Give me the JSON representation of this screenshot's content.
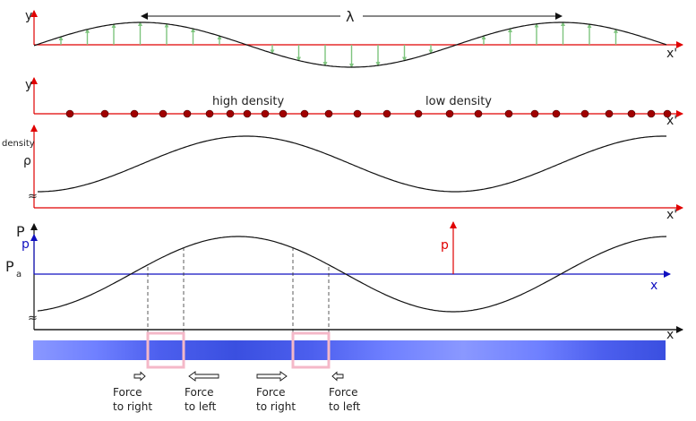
{
  "panel1": {
    "y_label": "y",
    "x_label": "x'",
    "wavelength_symbol": "λ"
  },
  "panel2": {
    "y_label": "y",
    "x_label": "x'",
    "high_density_label": "high density",
    "low_density_label": "low density"
  },
  "panel3": {
    "y_label_top": "density",
    "y_label_symbol": "ρ",
    "break_mark": "≈",
    "x_label": "x'"
  },
  "panel4": {
    "y_label_P": "P",
    "y_label_p": "p",
    "Pa_label": "P",
    "Pa_subscript": "a",
    "p_marker_label": "p",
    "x_label": "x",
    "break_mark": "≈"
  },
  "bar_panel": {
    "x_label": "x"
  },
  "forces": [
    {
      "line1": "Force",
      "line2": "to right"
    },
    {
      "line1": "Force",
      "line2": "to left"
    },
    {
      "line1": "Force",
      "line2": "to right"
    },
    {
      "line1": "Force",
      "line2": "to left"
    }
  ],
  "colors": {
    "axis_red": "#e00000",
    "axis_blue": "#1010c0",
    "curve": "#111111",
    "arrow_green": "#7ec47e",
    "dot": "#a00000",
    "bar_dark": "#3a4fe0",
    "bar_light": "#8a98ff",
    "box_pink": "#f4b8c8"
  }
}
